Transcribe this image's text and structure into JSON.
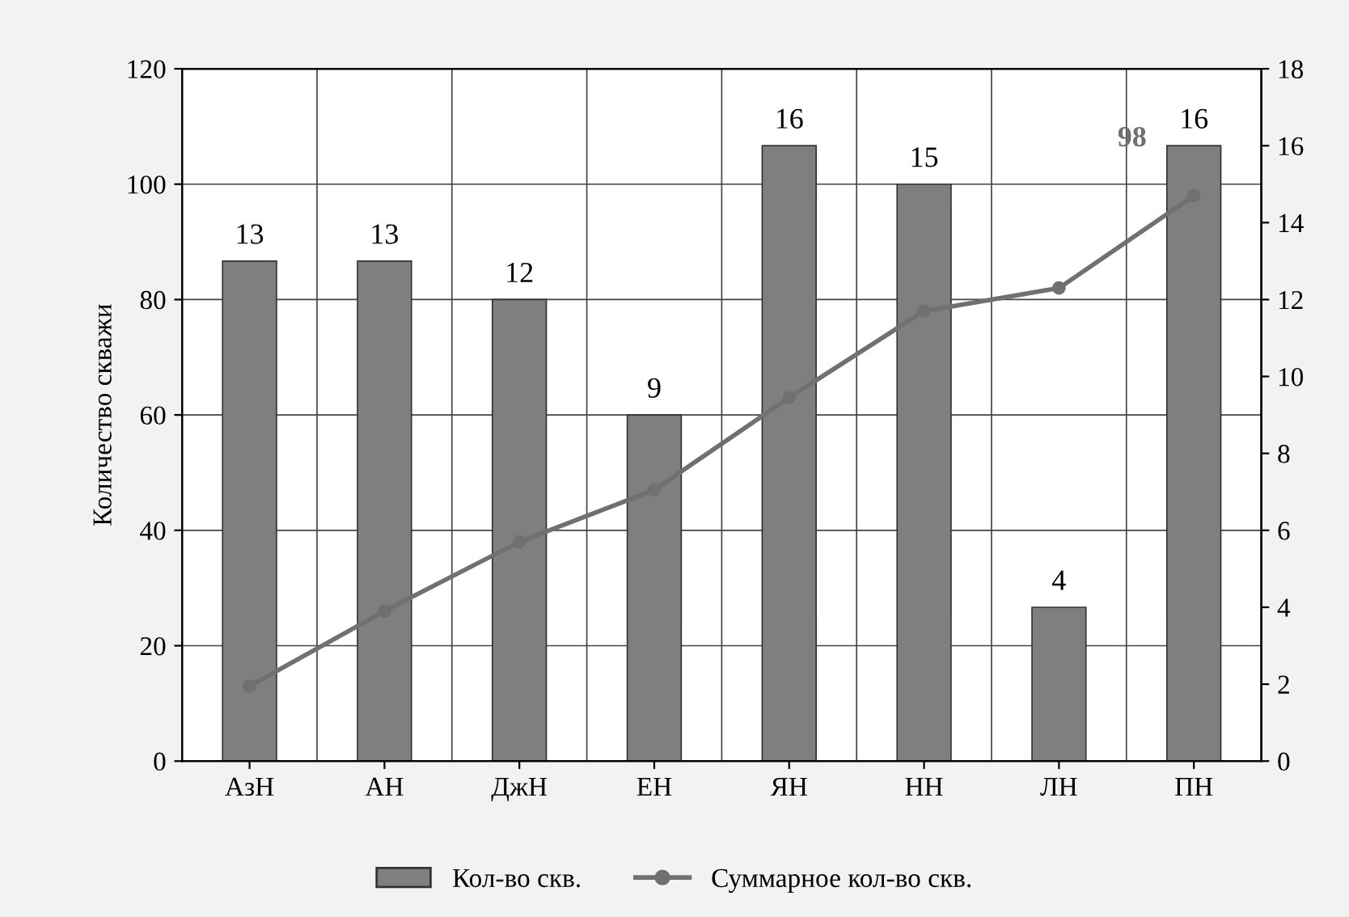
{
  "chart_data": {
    "type": "bar",
    "ylabel": "Количество скважи",
    "categories": [
      "АзН",
      "АН",
      "ДжН",
      "ЕН",
      "ЯН",
      "НН",
      "ЛН",
      "ПН"
    ],
    "series": [
      {
        "name": "Кол-во скв.",
        "axis": "y2",
        "color": "#7f7f7f",
        "values": [
          13,
          13,
          12,
          9,
          16,
          15,
          4,
          16
        ],
        "value_labels": [
          "13",
          "13",
          "12",
          "9",
          "16",
          "15",
          "4",
          "16"
        ]
      },
      {
        "name": "Суммарное кол-во скв.",
        "type": "line",
        "color": "#707070",
        "values": [
          13,
          26,
          38,
          47,
          63,
          78,
          82,
          98
        ],
        "value_labels": [
          null,
          null,
          null,
          null,
          null,
          null,
          null,
          "98"
        ]
      }
    ],
    "ylim": [
      0,
      120
    ],
    "yticks": [
      0,
      20,
      40,
      60,
      80,
      100,
      120
    ],
    "y2lim": [
      0,
      18
    ],
    "y2ticks": [
      0,
      2,
      4,
      6,
      8,
      10,
      12,
      14,
      16,
      18
    ],
    "grid": true,
    "legend": "bottom",
    "marker": "circle",
    "line_style": "solid"
  }
}
